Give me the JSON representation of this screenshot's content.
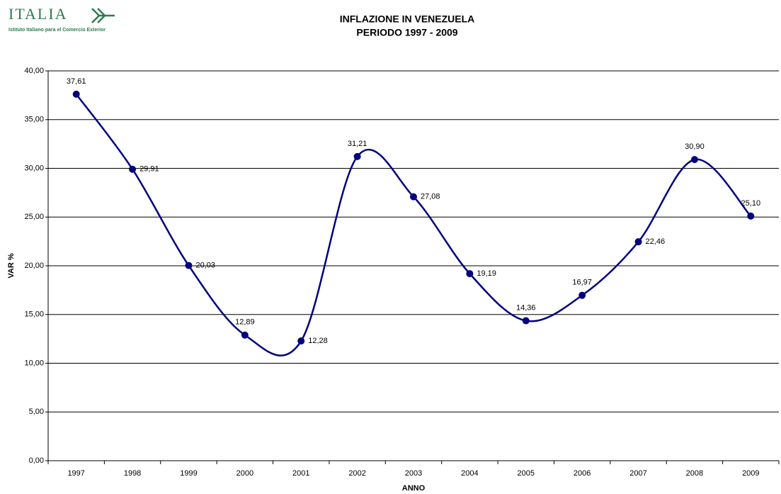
{
  "logo": {
    "name": "ITALIA",
    "subtitle": "Istituto Italiano para el Comercio Exterior"
  },
  "chart_data": {
    "type": "line",
    "title": "INFLAZIONE IN VENEZUELA",
    "subtitle": "PERIODO 1997 - 2009",
    "xlabel": "ANNO",
    "ylabel": "VAR %",
    "categories": [
      "1997",
      "1998",
      "1999",
      "2000",
      "2001",
      "2002",
      "2003",
      "2004",
      "2005",
      "2006",
      "2007",
      "2008",
      "2009"
    ],
    "series": [
      {
        "name": "VAR %",
        "color": "#000080",
        "values": [
          37.61,
          29.91,
          20.03,
          12.89,
          12.28,
          31.21,
          27.08,
          19.19,
          14.36,
          16.97,
          22.46,
          30.9,
          25.1
        ],
        "value_labels": [
          "37,61",
          "29,91",
          "20,03",
          "12,89",
          "12,28",
          "31,21",
          "27,08",
          "19,19",
          "14,36",
          "16,97",
          "22,46",
          "30,90",
          "25,10"
        ]
      }
    ],
    "ylim": [
      0,
      40
    ],
    "yticks": [
      {
        "value": 0,
        "label": "0,00"
      },
      {
        "value": 5,
        "label": "5,00"
      },
      {
        "value": 10,
        "label": "10,00"
      },
      {
        "value": 15,
        "label": "15,00"
      },
      {
        "value": 20,
        "label": "20,00"
      },
      {
        "value": 25,
        "label": "25,00"
      },
      {
        "value": 30,
        "label": "30,00"
      },
      {
        "value": 35,
        "label": "35,00"
      },
      {
        "value": 40,
        "label": "40,00"
      }
    ],
    "grid": true
  }
}
